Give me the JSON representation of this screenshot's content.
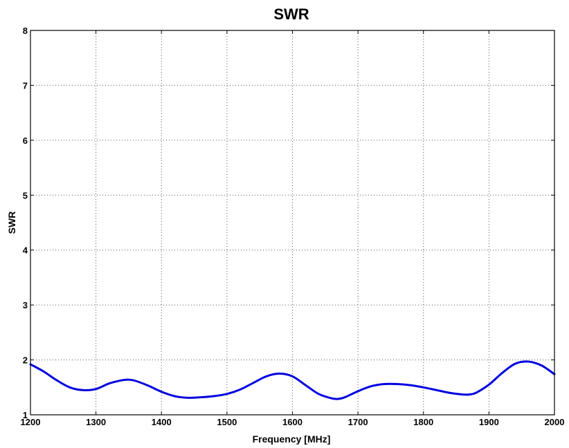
{
  "chart_data": {
    "type": "line",
    "title": "SWR",
    "xlabel": "Frequency [MHz]",
    "ylabel": "SWR",
    "xlim": [
      1200,
      2000
    ],
    "ylim": [
      1,
      8
    ],
    "xticks": [
      1200,
      1300,
      1400,
      1500,
      1600,
      1700,
      1800,
      1900,
      2000
    ],
    "yticks": [
      1,
      2,
      3,
      4,
      5,
      6,
      7,
      8
    ],
    "grid": true,
    "series": [
      {
        "color": "#0000e0",
        "x": [
          1200,
          1220,
          1240,
          1260,
          1280,
          1300,
          1320,
          1340,
          1350,
          1360,
          1380,
          1400,
          1420,
          1440,
          1460,
          1480,
          1500,
          1520,
          1540,
          1560,
          1580,
          1600,
          1620,
          1640,
          1660,
          1670,
          1680,
          1700,
          1720,
          1740,
          1760,
          1780,
          1800,
          1820,
          1840,
          1860,
          1870,
          1880,
          1900,
          1920,
          1940,
          1960,
          1980,
          2000
        ],
        "y": [
          1.92,
          1.79,
          1.63,
          1.5,
          1.45,
          1.47,
          1.57,
          1.63,
          1.64,
          1.62,
          1.53,
          1.42,
          1.34,
          1.31,
          1.32,
          1.34,
          1.38,
          1.46,
          1.58,
          1.7,
          1.75,
          1.7,
          1.54,
          1.38,
          1.3,
          1.29,
          1.32,
          1.43,
          1.52,
          1.56,
          1.56,
          1.54,
          1.5,
          1.45,
          1.4,
          1.37,
          1.37,
          1.4,
          1.55,
          1.76,
          1.93,
          1.97,
          1.9,
          1.74
        ]
      }
    ]
  }
}
